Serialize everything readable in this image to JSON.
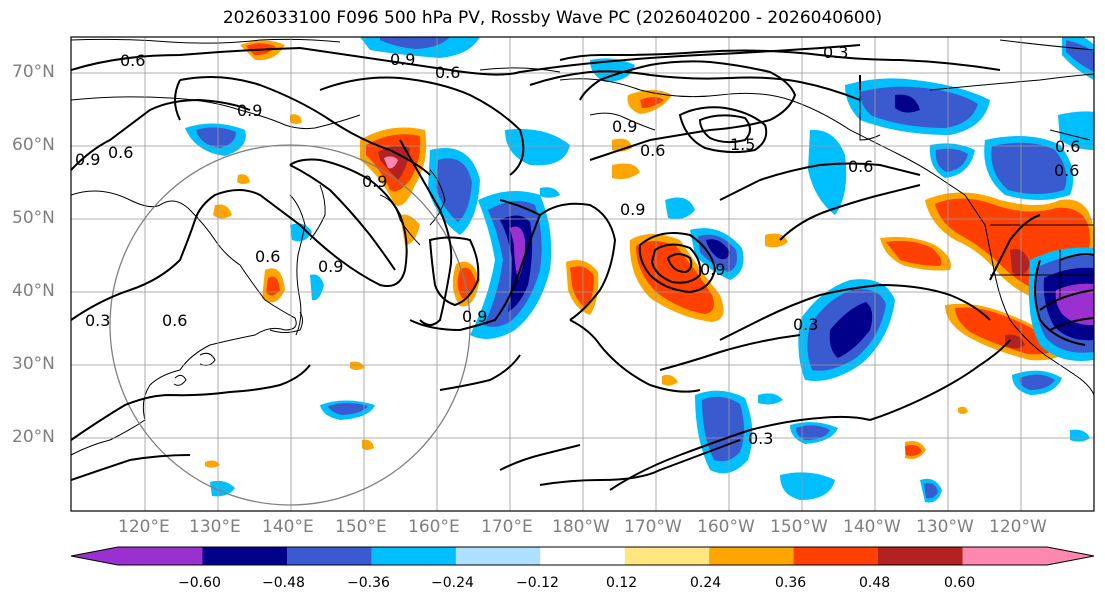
{
  "title": "2026033100 F096 500 hPa PV, Rossby Wave PC (2026040200 - 2026040600)",
  "lat_labels": [
    "70°N",
    "60°N",
    "50°N",
    "40°N",
    "30°N",
    "20°N"
  ],
  "lon_labels": [
    "120°E",
    "130°E",
    "140°E",
    "150°E",
    "160°E",
    "170°E",
    "180°W",
    "170°W",
    "160°W",
    "150°W",
    "140°W",
    "130°W",
    "120°W"
  ],
  "colorbar": {
    "ticks": [
      "−0.60",
      "−0.48",
      "−0.36",
      "−0.24",
      "−0.12",
      "0.12",
      "0.24",
      "0.36",
      "0.48",
      "0.60"
    ],
    "colors": [
      "#9b30d0",
      "#00008b",
      "#3a5bd0",
      "#00bfff",
      "#aee0ff",
      "#ffffff",
      "#ffe680",
      "#ffa500",
      "#ff4000",
      "#b22222",
      "#ff88b0"
    ]
  },
  "contour_labels": [
    "0.6",
    "0.9",
    "0.6",
    "0.9",
    "0.3",
    "0.9",
    "0.6",
    "0.9",
    "0.6",
    "0.9",
    "0.6",
    "0.3",
    "0.9",
    "0.6",
    "0.3",
    "0.6",
    "0.9",
    "0.6",
    "0.9",
    "0.3",
    "0.9",
    "1.5",
    "0.6"
  ]
}
